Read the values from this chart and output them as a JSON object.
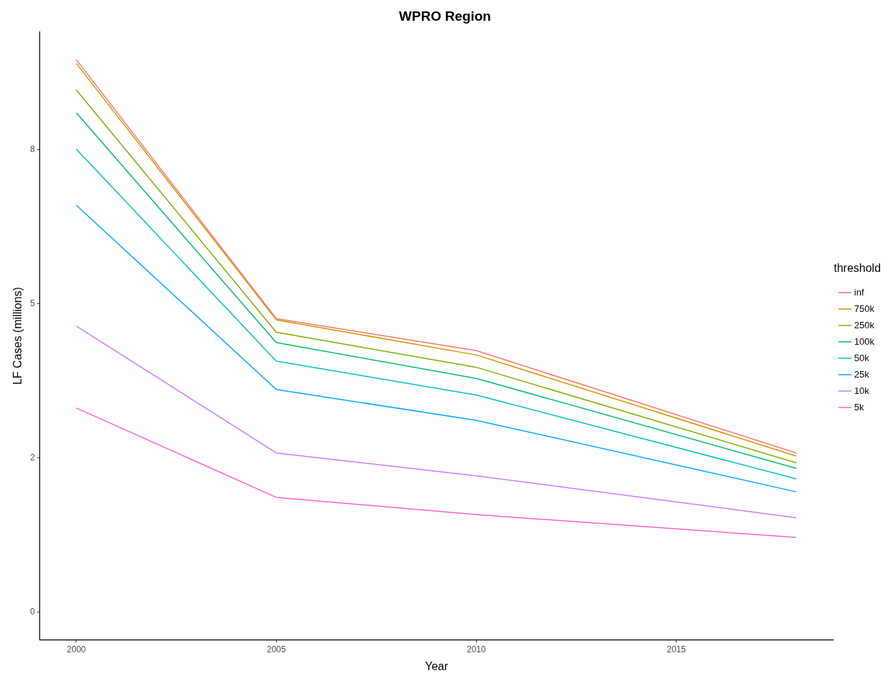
{
  "chart_data": {
    "type": "line",
    "title": "WPRO Region",
    "xlabel": "Year",
    "ylabel": "LF Cases (millions)",
    "legend_title": "threshold",
    "x": [
      2000,
      2005,
      2010,
      2018
    ],
    "xlim": [
      1999.09,
      2018.92
    ],
    "xticks": [
      2000,
      2005,
      2010,
      2015
    ],
    "ylim": [
      -0.45,
      9.41
    ],
    "yticks": [
      0,
      {
        "value": 2.5,
        "label": "2"
      },
      5,
      {
        "value": 7.5,
        "label": "8"
      }
    ],
    "grid": false,
    "legend": "right",
    "marker": "none",
    "line_style": "solid",
    "series": [
      {
        "name": "inf",
        "color": "#f8766d",
        "values": [
          8.96,
          4.76,
          4.24,
          2.58
        ]
      },
      {
        "name": "750k",
        "color": "#cd9600",
        "values": [
          8.9,
          4.74,
          4.17,
          2.53
        ]
      },
      {
        "name": "250k",
        "color": "#7cae00",
        "values": [
          8.47,
          4.54,
          3.97,
          2.42
        ]
      },
      {
        "name": "100k",
        "color": "#00be67",
        "values": [
          8.1,
          4.37,
          3.79,
          2.33
        ]
      },
      {
        "name": "50k",
        "color": "#00bfc4",
        "values": [
          7.51,
          4.07,
          3.52,
          2.16
        ]
      },
      {
        "name": "25k",
        "color": "#00a9ff",
        "values": [
          6.6,
          3.61,
          3.11,
          1.95
        ]
      },
      {
        "name": "10k",
        "color": "#c77cff",
        "values": [
          4.64,
          2.58,
          2.21,
          1.53
        ]
      },
      {
        "name": "5k",
        "color": "#ff61cc",
        "values": [
          3.31,
          1.86,
          1.58,
          1.21
        ]
      }
    ]
  }
}
